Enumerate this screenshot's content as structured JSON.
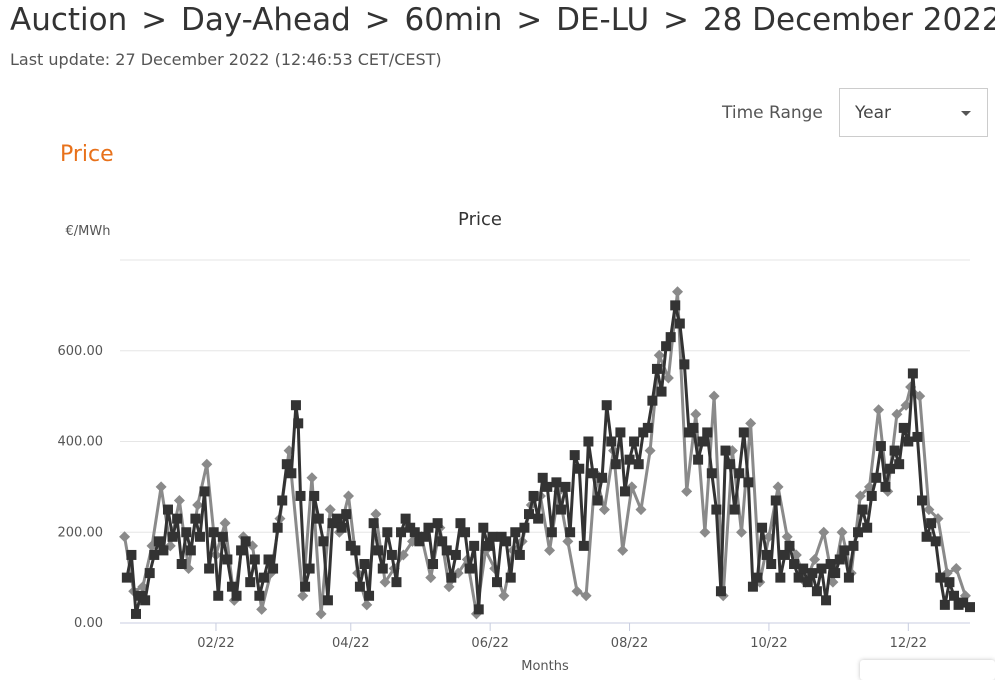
{
  "header": {
    "breadcrumb": [
      "Auction",
      "Day-Ahead",
      "60min",
      "DE-LU",
      "28 December 2022"
    ],
    "separator": ">",
    "last_update": "Last update: 27 December 2022 (12:46:53 CET/CEST)"
  },
  "controls": {
    "time_range_label": "Time Range",
    "time_range_value": "Year"
  },
  "section": {
    "title": "Price"
  },
  "colors": {
    "accent": "#e8711a",
    "series_primary": "#333333",
    "series_secondary": "#8a8a8a"
  },
  "chart_data": {
    "type": "line",
    "title": "Price",
    "ylabel": "€/MWh",
    "xlabel": "Months",
    "ylim": [
      0,
      800
    ],
    "yticks": [
      "0.00",
      "200.00",
      "400.00",
      "600.00"
    ],
    "x_ticks": [
      "02/22",
      "04/22",
      "06/22",
      "08/22",
      "10/22",
      "12/22"
    ],
    "x_range": [
      "2021-12-21",
      "2022-12-28"
    ],
    "legend": "none",
    "grid": "horizontal",
    "series": [
      {
        "marker": "square",
        "points": [
          [
            "2021-12-24",
            100
          ],
          [
            "2021-12-26",
            150
          ],
          [
            "2021-12-28",
            20
          ],
          [
            "2021-12-30",
            60
          ],
          [
            "2022-01-01",
            50
          ],
          [
            "2022-01-03",
            110
          ],
          [
            "2022-01-05",
            150
          ],
          [
            "2022-01-07",
            180
          ],
          [
            "2022-01-09",
            160
          ],
          [
            "2022-01-11",
            250
          ],
          [
            "2022-01-13",
            190
          ],
          [
            "2022-01-15",
            230
          ],
          [
            "2022-01-17",
            130
          ],
          [
            "2022-01-19",
            200
          ],
          [
            "2022-01-21",
            160
          ],
          [
            "2022-01-23",
            230
          ],
          [
            "2022-01-25",
            190
          ],
          [
            "2022-01-27",
            290
          ],
          [
            "2022-01-29",
            120
          ],
          [
            "2022-01-31",
            200
          ],
          [
            "2022-02-02",
            60
          ],
          [
            "2022-02-04",
            190
          ],
          [
            "2022-02-06",
            140
          ],
          [
            "2022-02-08",
            80
          ],
          [
            "2022-02-10",
            60
          ],
          [
            "2022-02-12",
            160
          ],
          [
            "2022-02-14",
            180
          ],
          [
            "2022-02-16",
            90
          ],
          [
            "2022-02-18",
            140
          ],
          [
            "2022-02-20",
            60
          ],
          [
            "2022-02-22",
            100
          ],
          [
            "2022-02-24",
            140
          ],
          [
            "2022-02-26",
            120
          ],
          [
            "2022-02-28",
            210
          ],
          [
            "2022-03-02",
            270
          ],
          [
            "2022-03-04",
            350
          ],
          [
            "2022-03-06",
            330
          ],
          [
            "2022-03-08",
            480
          ],
          [
            "2022-03-09",
            440
          ],
          [
            "2022-03-10",
            280
          ],
          [
            "2022-03-12",
            80
          ],
          [
            "2022-03-14",
            120
          ],
          [
            "2022-03-16",
            280
          ],
          [
            "2022-03-18",
            230
          ],
          [
            "2022-03-20",
            180
          ],
          [
            "2022-03-22",
            50
          ],
          [
            "2022-03-24",
            220
          ],
          [
            "2022-03-26",
            230
          ],
          [
            "2022-03-28",
            210
          ],
          [
            "2022-03-30",
            240
          ],
          [
            "2022-04-01",
            170
          ],
          [
            "2022-04-03",
            160
          ],
          [
            "2022-04-05",
            80
          ],
          [
            "2022-04-07",
            130
          ],
          [
            "2022-04-09",
            60
          ],
          [
            "2022-04-11",
            220
          ],
          [
            "2022-04-13",
            160
          ],
          [
            "2022-04-15",
            120
          ],
          [
            "2022-04-17",
            200
          ],
          [
            "2022-04-19",
            150
          ],
          [
            "2022-04-21",
            90
          ],
          [
            "2022-04-23",
            200
          ],
          [
            "2022-04-25",
            230
          ],
          [
            "2022-04-27",
            210
          ],
          [
            "2022-04-29",
            200
          ],
          [
            "2022-05-01",
            180
          ],
          [
            "2022-05-03",
            190
          ],
          [
            "2022-05-05",
            210
          ],
          [
            "2022-05-07",
            130
          ],
          [
            "2022-05-09",
            220
          ],
          [
            "2022-05-11",
            180
          ],
          [
            "2022-05-13",
            160
          ],
          [
            "2022-05-15",
            100
          ],
          [
            "2022-05-17",
            150
          ],
          [
            "2022-05-19",
            220
          ],
          [
            "2022-05-21",
            200
          ],
          [
            "2022-05-23",
            120
          ],
          [
            "2022-05-25",
            170
          ],
          [
            "2022-05-27",
            30
          ],
          [
            "2022-05-29",
            210
          ],
          [
            "2022-05-31",
            170
          ],
          [
            "2022-06-02",
            190
          ],
          [
            "2022-06-04",
            90
          ],
          [
            "2022-06-06",
            190
          ],
          [
            "2022-06-08",
            180
          ],
          [
            "2022-06-10",
            100
          ],
          [
            "2022-06-12",
            200
          ],
          [
            "2022-06-14",
            150
          ],
          [
            "2022-06-16",
            210
          ],
          [
            "2022-06-18",
            240
          ],
          [
            "2022-06-20",
            280
          ],
          [
            "2022-06-22",
            230
          ],
          [
            "2022-06-24",
            320
          ],
          [
            "2022-06-26",
            300
          ],
          [
            "2022-06-28",
            200
          ],
          [
            "2022-06-30",
            310
          ],
          [
            "2022-07-02",
            250
          ],
          [
            "2022-07-04",
            300
          ],
          [
            "2022-07-06",
            200
          ],
          [
            "2022-07-08",
            370
          ],
          [
            "2022-07-10",
            340
          ],
          [
            "2022-07-12",
            170
          ],
          [
            "2022-07-14",
            400
          ],
          [
            "2022-07-16",
            330
          ],
          [
            "2022-07-18",
            270
          ],
          [
            "2022-07-20",
            320
          ],
          [
            "2022-07-22",
            480
          ],
          [
            "2022-07-24",
            400
          ],
          [
            "2022-07-26",
            350
          ],
          [
            "2022-07-28",
            420
          ],
          [
            "2022-07-30",
            290
          ],
          [
            "2022-08-01",
            360
          ],
          [
            "2022-08-03",
            400
          ],
          [
            "2022-08-05",
            350
          ],
          [
            "2022-08-07",
            420
          ],
          [
            "2022-08-09",
            430
          ],
          [
            "2022-08-11",
            490
          ],
          [
            "2022-08-13",
            560
          ],
          [
            "2022-08-15",
            510
          ],
          [
            "2022-08-17",
            610
          ],
          [
            "2022-08-19",
            630
          ],
          [
            "2022-08-21",
            700
          ],
          [
            "2022-08-23",
            660
          ],
          [
            "2022-08-25",
            570
          ],
          [
            "2022-08-27",
            420
          ],
          [
            "2022-08-29",
            430
          ],
          [
            "2022-08-31",
            360
          ],
          [
            "2022-09-02",
            400
          ],
          [
            "2022-09-04",
            420
          ],
          [
            "2022-09-06",
            330
          ],
          [
            "2022-09-08",
            250
          ],
          [
            "2022-09-10",
            70
          ],
          [
            "2022-09-12",
            380
          ],
          [
            "2022-09-14",
            350
          ],
          [
            "2022-09-16",
            250
          ],
          [
            "2022-09-18",
            330
          ],
          [
            "2022-09-20",
            420
          ],
          [
            "2022-09-22",
            310
          ],
          [
            "2022-09-24",
            80
          ],
          [
            "2022-09-26",
            100
          ],
          [
            "2022-09-28",
            210
          ],
          [
            "2022-09-30",
            150
          ],
          [
            "2022-10-02",
            130
          ],
          [
            "2022-10-04",
            270
          ],
          [
            "2022-10-06",
            100
          ],
          [
            "2022-10-08",
            150
          ],
          [
            "2022-10-10",
            170
          ],
          [
            "2022-10-12",
            130
          ],
          [
            "2022-10-14",
            100
          ],
          [
            "2022-10-16",
            120
          ],
          [
            "2022-10-18",
            90
          ],
          [
            "2022-10-20",
            110
          ],
          [
            "2022-10-22",
            70
          ],
          [
            "2022-10-24",
            120
          ],
          [
            "2022-10-26",
            50
          ],
          [
            "2022-10-28",
            130
          ],
          [
            "2022-10-30",
            110
          ],
          [
            "2022-11-01",
            140
          ],
          [
            "2022-11-03",
            160
          ],
          [
            "2022-11-05",
            100
          ],
          [
            "2022-11-07",
            170
          ],
          [
            "2022-11-09",
            200
          ],
          [
            "2022-11-11",
            250
          ],
          [
            "2022-11-13",
            210
          ],
          [
            "2022-11-15",
            280
          ],
          [
            "2022-11-17",
            320
          ],
          [
            "2022-11-19",
            390
          ],
          [
            "2022-11-21",
            300
          ],
          [
            "2022-11-23",
            340
          ],
          [
            "2022-11-25",
            380
          ],
          [
            "2022-11-27",
            350
          ],
          [
            "2022-11-29",
            430
          ],
          [
            "2022-12-01",
            400
          ],
          [
            "2022-12-03",
            550
          ],
          [
            "2022-12-05",
            410
          ],
          [
            "2022-12-07",
            270
          ],
          [
            "2022-12-09",
            190
          ],
          [
            "2022-12-11",
            220
          ],
          [
            "2022-12-13",
            180
          ],
          [
            "2022-12-15",
            100
          ],
          [
            "2022-12-17",
            40
          ],
          [
            "2022-12-19",
            90
          ],
          [
            "2022-12-21",
            60
          ],
          [
            "2022-12-23",
            40
          ],
          [
            "2022-12-25",
            45
          ],
          [
            "2022-12-28",
            35
          ]
        ]
      },
      {
        "marker": "diamond",
        "points": [
          [
            "2021-12-23",
            190
          ],
          [
            "2021-12-27",
            70
          ],
          [
            "2021-12-31",
            80
          ],
          [
            "2022-01-04",
            170
          ],
          [
            "2022-01-08",
            300
          ],
          [
            "2022-01-12",
            170
          ],
          [
            "2022-01-16",
            270
          ],
          [
            "2022-01-20",
            120
          ],
          [
            "2022-01-24",
            260
          ],
          [
            "2022-01-28",
            350
          ],
          [
            "2022-02-01",
            150
          ],
          [
            "2022-02-05",
            220
          ],
          [
            "2022-02-09",
            50
          ],
          [
            "2022-02-13",
            190
          ],
          [
            "2022-02-17",
            170
          ],
          [
            "2022-02-21",
            30
          ],
          [
            "2022-02-25",
            110
          ],
          [
            "2022-03-01",
            230
          ],
          [
            "2022-03-05",
            380
          ],
          [
            "2022-03-11",
            60
          ],
          [
            "2022-03-15",
            320
          ],
          [
            "2022-03-19",
            20
          ],
          [
            "2022-03-23",
            250
          ],
          [
            "2022-03-27",
            200
          ],
          [
            "2022-03-31",
            280
          ],
          [
            "2022-04-04",
            110
          ],
          [
            "2022-04-08",
            40
          ],
          [
            "2022-04-12",
            240
          ],
          [
            "2022-04-16",
            90
          ],
          [
            "2022-04-20",
            120
          ],
          [
            "2022-04-24",
            150
          ],
          [
            "2022-04-28",
            180
          ],
          [
            "2022-05-02",
            190
          ],
          [
            "2022-05-06",
            100
          ],
          [
            "2022-05-10",
            210
          ],
          [
            "2022-05-14",
            80
          ],
          [
            "2022-05-18",
            110
          ],
          [
            "2022-05-22",
            140
          ],
          [
            "2022-05-26",
            20
          ],
          [
            "2022-05-30",
            160
          ],
          [
            "2022-06-03",
            120
          ],
          [
            "2022-06-07",
            60
          ],
          [
            "2022-06-11",
            160
          ],
          [
            "2022-06-15",
            180
          ],
          [
            "2022-06-19",
            260
          ],
          [
            "2022-06-23",
            280
          ],
          [
            "2022-06-27",
            160
          ],
          [
            "2022-07-01",
            290
          ],
          [
            "2022-07-05",
            180
          ],
          [
            "2022-07-09",
            70
          ],
          [
            "2022-07-13",
            60
          ],
          [
            "2022-07-17",
            330
          ],
          [
            "2022-07-21",
            250
          ],
          [
            "2022-07-25",
            380
          ],
          [
            "2022-07-29",
            160
          ],
          [
            "2022-08-02",
            300
          ],
          [
            "2022-08-06",
            250
          ],
          [
            "2022-08-10",
            380
          ],
          [
            "2022-08-14",
            590
          ],
          [
            "2022-08-18",
            540
          ],
          [
            "2022-08-22",
            730
          ],
          [
            "2022-08-26",
            290
          ],
          [
            "2022-08-30",
            460
          ],
          [
            "2022-09-03",
            200
          ],
          [
            "2022-09-07",
            500
          ],
          [
            "2022-09-11",
            60
          ],
          [
            "2022-09-15",
            380
          ],
          [
            "2022-09-19",
            200
          ],
          [
            "2022-09-23",
            440
          ],
          [
            "2022-09-27",
            90
          ],
          [
            "2022-10-01",
            190
          ],
          [
            "2022-10-05",
            300
          ],
          [
            "2022-10-09",
            190
          ],
          [
            "2022-10-13",
            150
          ],
          [
            "2022-10-17",
            90
          ],
          [
            "2022-10-21",
            140
          ],
          [
            "2022-10-25",
            200
          ],
          [
            "2022-10-29",
            90
          ],
          [
            "2022-11-02",
            200
          ],
          [
            "2022-11-06",
            110
          ],
          [
            "2022-11-10",
            280
          ],
          [
            "2022-11-14",
            300
          ],
          [
            "2022-11-18",
            470
          ],
          [
            "2022-11-22",
            290
          ],
          [
            "2022-11-26",
            460
          ],
          [
            "2022-11-30",
            480
          ],
          [
            "2022-12-02",
            520
          ],
          [
            "2022-12-06",
            500
          ],
          [
            "2022-12-10",
            250
          ],
          [
            "2022-12-14",
            230
          ],
          [
            "2022-12-18",
            110
          ],
          [
            "2022-12-22",
            120
          ],
          [
            "2022-12-26",
            60
          ]
        ]
      }
    ]
  }
}
